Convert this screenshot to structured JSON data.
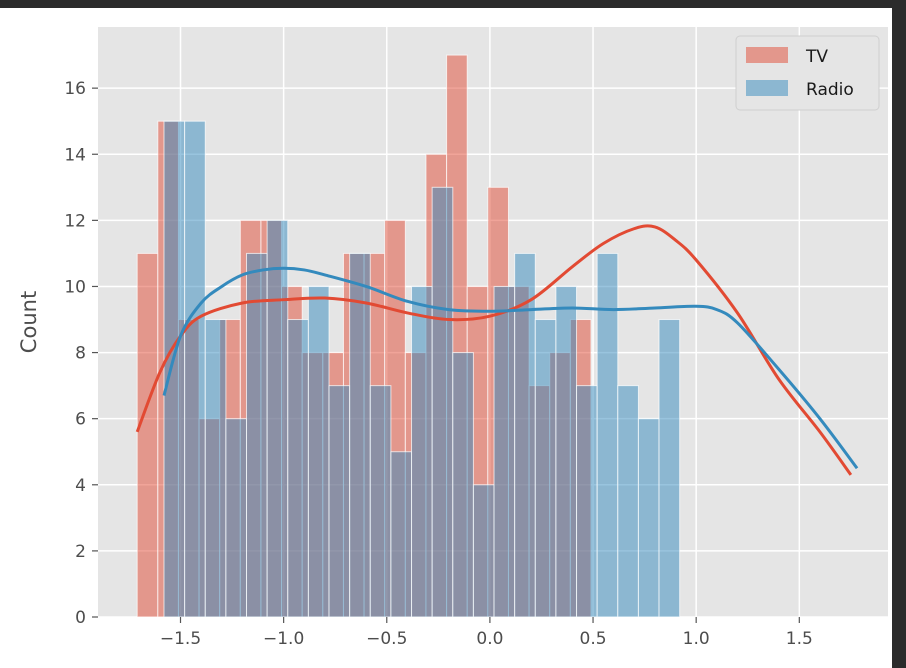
{
  "chart_data": {
    "type": "bar",
    "subtype": "overlaid histogram with KDE",
    "xlabel": "",
    "ylabel": "Count",
    "xlim": [
      -1.9,
      1.93
    ],
    "ylim": [
      0,
      17.85
    ],
    "xticks": [
      -1.5,
      -1.0,
      -0.5,
      0.0,
      0.5,
      1.0,
      1.5
    ],
    "xtick_labels": [
      "−1.5",
      "−1.0",
      "−0.5",
      "0.0",
      "0.5",
      "1.0",
      "1.5"
    ],
    "yticks": [
      0,
      2,
      4,
      6,
      8,
      10,
      12,
      14,
      16
    ],
    "ytick_labels": [
      "0",
      "2",
      "4",
      "6",
      "8",
      "10",
      "12",
      "14",
      "16"
    ],
    "grid": true,
    "legend_position": "top-right",
    "series": [
      {
        "name": "TV",
        "color": "#E24A33",
        "bin_start": -1.71,
        "bin_width": 0.1,
        "counts": [
          11,
          15,
          9,
          6,
          9,
          12,
          12,
          10,
          8,
          8,
          11,
          11,
          12,
          8,
          14,
          17,
          10,
          13,
          10,
          7,
          8,
          9
        ],
        "kde": [
          [
            -1.71,
            5.6
          ],
          [
            -1.6,
            7.4
          ],
          [
            -1.5,
            8.5
          ],
          [
            -1.4,
            9.1
          ],
          [
            -1.2,
            9.5
          ],
          [
            -1.0,
            9.6
          ],
          [
            -0.8,
            9.65
          ],
          [
            -0.6,
            9.5
          ],
          [
            -0.4,
            9.2
          ],
          [
            -0.2,
            9.0
          ],
          [
            0.0,
            9.1
          ],
          [
            0.2,
            9.6
          ],
          [
            0.4,
            10.6
          ],
          [
            0.55,
            11.3
          ],
          [
            0.7,
            11.75
          ],
          [
            0.8,
            11.8
          ],
          [
            0.9,
            11.4
          ],
          [
            1.0,
            10.8
          ],
          [
            1.2,
            9.2
          ],
          [
            1.4,
            7.2
          ],
          [
            1.6,
            5.6
          ],
          [
            1.75,
            4.3
          ]
        ]
      },
      {
        "name": "Radio",
        "color": "#348ABD",
        "bin_start": -1.58,
        "bin_width": 0.1,
        "counts": [
          15,
          15,
          9,
          6,
          11,
          12,
          9,
          10,
          7,
          11,
          7,
          5,
          10,
          13,
          8,
          4,
          10,
          11,
          9,
          10,
          7,
          11,
          7,
          6,
          9
        ],
        "kde": [
          [
            -1.58,
            6.7
          ],
          [
            -1.5,
            8.5
          ],
          [
            -1.4,
            9.5
          ],
          [
            -1.3,
            10.0
          ],
          [
            -1.2,
            10.35
          ],
          [
            -1.1,
            10.5
          ],
          [
            -1.0,
            10.55
          ],
          [
            -0.9,
            10.5
          ],
          [
            -0.8,
            10.35
          ],
          [
            -0.6,
            10.0
          ],
          [
            -0.4,
            9.55
          ],
          [
            -0.2,
            9.3
          ],
          [
            0.0,
            9.25
          ],
          [
            0.2,
            9.3
          ],
          [
            0.4,
            9.35
          ],
          [
            0.6,
            9.3
          ],
          [
            0.8,
            9.35
          ],
          [
            1.0,
            9.4
          ],
          [
            1.1,
            9.3
          ],
          [
            1.2,
            8.9
          ],
          [
            1.4,
            7.5
          ],
          [
            1.6,
            6.0
          ],
          [
            1.78,
            4.5
          ]
        ]
      }
    ]
  },
  "colors": {
    "plot_background": "#E5E5E5",
    "grid": "#FFFFFF",
    "overlap": "#8E8099"
  }
}
